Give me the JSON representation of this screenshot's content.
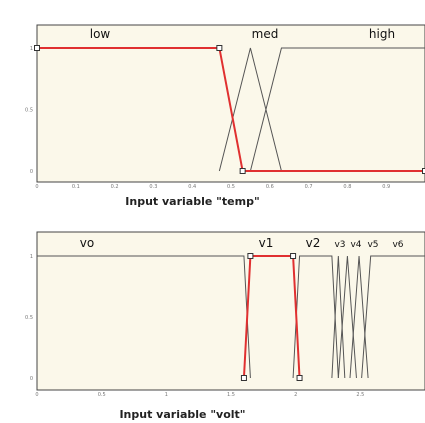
{
  "panels": [
    {
      "id": "temp",
      "axis_title": "Input variable \"temp\"",
      "x_ticks": [
        "0",
        "0.1",
        "0.2",
        "0.3",
        "0.4",
        "0.5",
        "0.6",
        "0.7",
        "0.8",
        "0.9"
      ],
      "y_ticks": [
        "0",
        "0.5",
        "1"
      ],
      "mf_labels": [
        "low",
        "med",
        "high"
      ]
    },
    {
      "id": "volt",
      "axis_title": "Input variable \"volt\"",
      "x_ticks": [
        "0",
        "0.5",
        "1",
        "1.5",
        "2",
        "2.5"
      ],
      "y_ticks": [
        "0",
        "0.5",
        "1"
      ],
      "mf_labels": [
        "vo",
        "v1",
        "v2",
        "v3",
        "v4",
        "v5",
        "v6"
      ]
    }
  ],
  "colors": {
    "background": "#fbf8ea",
    "mf_line": "#555555",
    "selected_mf": "#e03030"
  },
  "chart_data": [
    {
      "type": "line",
      "xlabel": "Input variable \"temp\"",
      "xlim": [
        0,
        1
      ],
      "ylim": [
        0,
        1
      ],
      "series": [
        {
          "name": "low",
          "x": [
            0,
            0.47,
            0.53,
            1
          ],
          "y": [
            1,
            1,
            0,
            0
          ],
          "selected": true
        },
        {
          "name": "med",
          "x": [
            0.47,
            0.55,
            0.63
          ],
          "y": [
            0,
            1,
            0
          ]
        },
        {
          "name": "high",
          "x": [
            0.55,
            0.63,
            1
          ],
          "y": [
            0,
            1,
            1
          ]
        }
      ]
    },
    {
      "type": "line",
      "xlabel": "Input variable \"volt\"",
      "xlim": [
        0,
        3
      ],
      "ylim": [
        0,
        1
      ],
      "series": [
        {
          "name": "vo",
          "x": [
            0,
            1.6,
            1.65
          ],
          "y": [
            1,
            1,
            0
          ]
        },
        {
          "name": "v1",
          "x": [
            1.6,
            1.65,
            1.98,
            2.03
          ],
          "y": [
            0,
            1,
            1,
            0
          ],
          "selected": true
        },
        {
          "name": "v2",
          "x": [
            1.98,
            2.03,
            2.28,
            2.33
          ],
          "y": [
            0,
            1,
            1,
            0
          ]
        },
        {
          "name": "v3",
          "x": [
            2.28,
            2.33,
            2.38
          ],
          "y": [
            0,
            1,
            0
          ]
        },
        {
          "name": "v4",
          "x": [
            2.33,
            2.4,
            2.47
          ],
          "y": [
            0,
            1,
            0
          ]
        },
        {
          "name": "v5",
          "x": [
            2.42,
            2.49,
            2.56
          ],
          "y": [
            0,
            1,
            0
          ]
        },
        {
          "name": "v6",
          "x": [
            2.51,
            2.58,
            3.0
          ],
          "y": [
            0,
            1,
            1
          ]
        }
      ]
    }
  ]
}
